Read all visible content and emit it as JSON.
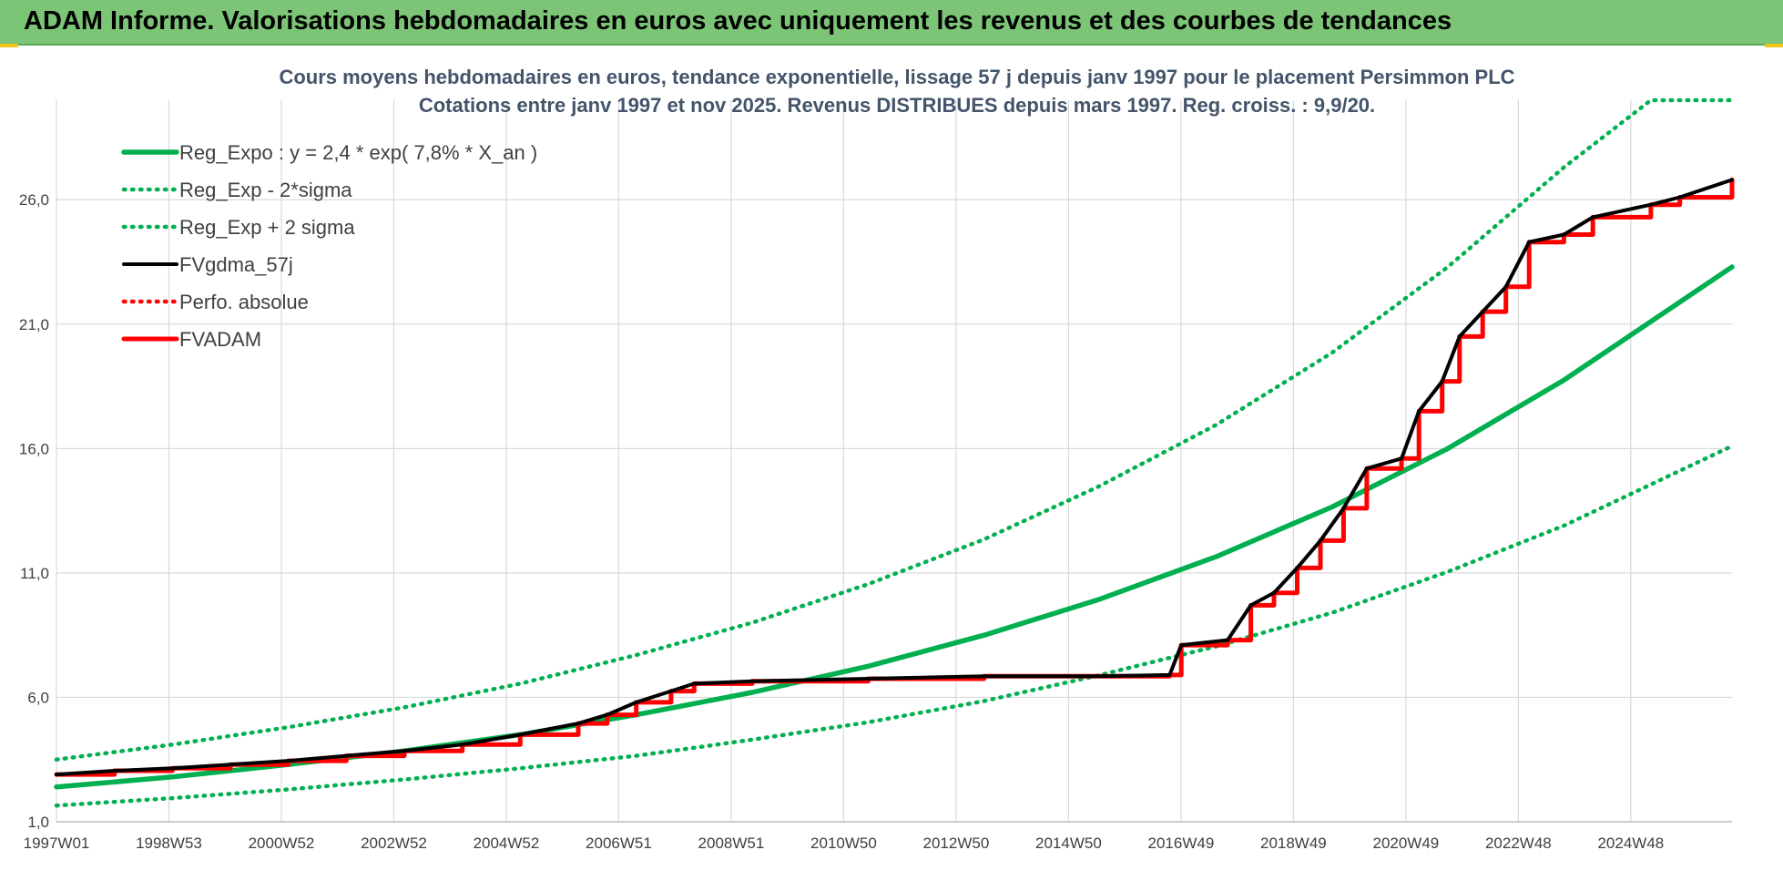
{
  "header": {
    "title": "ADAM Informe. Valorisations hebdomadaires en euros avec uniquement les revenus et des courbes de tendances"
  },
  "colors": {
    "banner": "#7cc576",
    "trend": "#00b050",
    "black": "#000000",
    "red": "#ff0000"
  },
  "chart_data": {
    "type": "line",
    "title_lines": [
      "Cours moyens hebdomadaires en euros, tendance exponentielle, lissage 57 j depuis janv 1997 pour le placement Persimmon PLC",
      "Cotations entre janv 1997 et nov 2025. Revenus DISTRIBUES depuis mars 1997.  Reg. croiss. : 9,9/20."
    ],
    "ylim": [
      1,
      30
    ],
    "y_ticks": [
      "1,0",
      "6,0",
      "11,0",
      "16,0",
      "21,0",
      "26,0"
    ],
    "x_ticks": [
      "1997W01",
      "1998W53",
      "2000W52",
      "2002W52",
      "2004W52",
      "2006W51",
      "2008W51",
      "2010W50",
      "2012W50",
      "2014W50",
      "2016W49",
      "2018W49",
      "2020W49",
      "2022W48",
      "2024W48"
    ],
    "x_range": [
      1997.0,
      2025.9
    ],
    "grid": true,
    "legend_position": "top-left",
    "series": [
      {
        "name": "Reg_Expo : y = 2,4 * exp( 7,8% *  X_an )",
        "style": "solid",
        "color": "#00b050",
        "points": [
          [
            1997.0,
            2.4
          ],
          [
            1999.0,
            2.8
          ],
          [
            2001.0,
            3.3
          ],
          [
            2003.0,
            3.85
          ],
          [
            2005.0,
            4.5
          ],
          [
            2007.0,
            5.3
          ],
          [
            2009.0,
            6.2
          ],
          [
            2011.0,
            7.25
          ],
          [
            2013.0,
            8.5
          ],
          [
            2015.0,
            9.95
          ],
          [
            2017.0,
            11.65
          ],
          [
            2019.0,
            13.65
          ],
          [
            2021.0,
            16.0
          ],
          [
            2023.0,
            18.75
          ],
          [
            2025.9,
            23.3
          ]
        ]
      },
      {
        "name": "Reg_Exp - 2*sigma",
        "style": "dotted",
        "color": "#00b050",
        "points": [
          [
            1997.0,
            1.65
          ],
          [
            1999.0,
            1.95
          ],
          [
            2001.0,
            2.3
          ],
          [
            2003.0,
            2.7
          ],
          [
            2005.0,
            3.15
          ],
          [
            2007.0,
            3.65
          ],
          [
            2009.0,
            4.3
          ],
          [
            2011.0,
            5.0
          ],
          [
            2013.0,
            5.85
          ],
          [
            2015.0,
            6.9
          ],
          [
            2017.0,
            8.05
          ],
          [
            2019.0,
            9.4
          ],
          [
            2021.0,
            11.05
          ],
          [
            2023.0,
            12.9
          ],
          [
            2025.9,
            16.1
          ]
        ]
      },
      {
        "name": "Reg_Exp + 2 sigma",
        "style": "dotted",
        "color": "#00b050",
        "points": [
          [
            1997.0,
            3.5
          ],
          [
            1999.0,
            4.1
          ],
          [
            2001.0,
            4.8
          ],
          [
            2003.0,
            5.6
          ],
          [
            2005.0,
            6.55
          ],
          [
            2007.0,
            7.7
          ],
          [
            2009.0,
            9.0
          ],
          [
            2011.0,
            10.55
          ],
          [
            2013.0,
            12.35
          ],
          [
            2015.0,
            14.5
          ],
          [
            2017.0,
            16.95
          ],
          [
            2019.0,
            19.85
          ],
          [
            2021.0,
            23.3
          ],
          [
            2023.0,
            27.3
          ],
          [
            2024.5,
            30.0
          ],
          [
            2025.9,
            30.0
          ]
        ]
      },
      {
        "name": "FVgdma_57j",
        "style": "solid",
        "color": "#000000",
        "points": [
          [
            1997.0,
            2.9
          ],
          [
            1998.0,
            3.05
          ],
          [
            1999.0,
            3.15
          ],
          [
            2000.0,
            3.3
          ],
          [
            2001.0,
            3.45
          ],
          [
            2002.0,
            3.65
          ],
          [
            2003.0,
            3.85
          ],
          [
            2004.0,
            4.1
          ],
          [
            2005.0,
            4.5
          ],
          [
            2006.0,
            4.95
          ],
          [
            2006.5,
            5.3
          ],
          [
            2007.0,
            5.8
          ],
          [
            2007.6,
            6.25
          ],
          [
            2008.0,
            6.55
          ],
          [
            2009.0,
            6.65
          ],
          [
            2011.0,
            6.75
          ],
          [
            2013.0,
            6.85
          ],
          [
            2015.0,
            6.85
          ],
          [
            2016.2,
            6.9
          ],
          [
            2016.4,
            8.1
          ],
          [
            2017.2,
            8.3
          ],
          [
            2017.6,
            9.7
          ],
          [
            2018.0,
            10.2
          ],
          [
            2018.4,
            11.2
          ],
          [
            2018.8,
            12.3
          ],
          [
            2019.2,
            13.6
          ],
          [
            2019.6,
            15.2
          ],
          [
            2020.2,
            15.6
          ],
          [
            2020.5,
            17.5
          ],
          [
            2020.9,
            18.7
          ],
          [
            2021.2,
            20.5
          ],
          [
            2021.6,
            21.5
          ],
          [
            2022.0,
            22.5
          ],
          [
            2022.4,
            24.3
          ],
          [
            2023.0,
            24.6
          ],
          [
            2023.5,
            25.3
          ],
          [
            2024.5,
            25.8
          ],
          [
            2025.0,
            26.1
          ],
          [
            2025.9,
            26.8
          ]
        ]
      },
      {
        "name": "Perfo. absolue",
        "style": "dotted",
        "color": "#ff0000",
        "points": []
      },
      {
        "name": "FVADAM",
        "style": "solid",
        "color": "#ff0000",
        "points": [
          [
            1997.0,
            2.9
          ],
          [
            1998.0,
            3.05
          ],
          [
            1999.0,
            3.15
          ],
          [
            2000.0,
            3.3
          ],
          [
            2001.0,
            3.45
          ],
          [
            2002.0,
            3.65
          ],
          [
            2003.0,
            3.85
          ],
          [
            2004.0,
            4.1
          ],
          [
            2005.0,
            4.5
          ],
          [
            2006.0,
            4.95
          ],
          [
            2006.5,
            5.3
          ],
          [
            2007.0,
            5.8
          ],
          [
            2007.6,
            6.25
          ],
          [
            2008.0,
            6.55
          ],
          [
            2009.0,
            6.65
          ],
          [
            2011.0,
            6.75
          ],
          [
            2013.0,
            6.85
          ],
          [
            2015.0,
            6.85
          ],
          [
            2016.2,
            6.9
          ],
          [
            2016.4,
            8.1
          ],
          [
            2017.2,
            8.3
          ],
          [
            2017.6,
            9.7
          ],
          [
            2018.0,
            10.2
          ],
          [
            2018.4,
            11.2
          ],
          [
            2018.8,
            12.3
          ],
          [
            2019.2,
            13.6
          ],
          [
            2019.6,
            15.2
          ],
          [
            2020.2,
            15.6
          ],
          [
            2020.5,
            17.5
          ],
          [
            2020.9,
            18.7
          ],
          [
            2021.2,
            20.5
          ],
          [
            2021.6,
            21.5
          ],
          [
            2022.0,
            22.5
          ],
          [
            2022.4,
            24.3
          ],
          [
            2023.0,
            24.6
          ],
          [
            2023.5,
            25.3
          ],
          [
            2024.5,
            25.8
          ],
          [
            2025.0,
            26.1
          ],
          [
            2025.9,
            26.8
          ]
        ]
      }
    ]
  }
}
